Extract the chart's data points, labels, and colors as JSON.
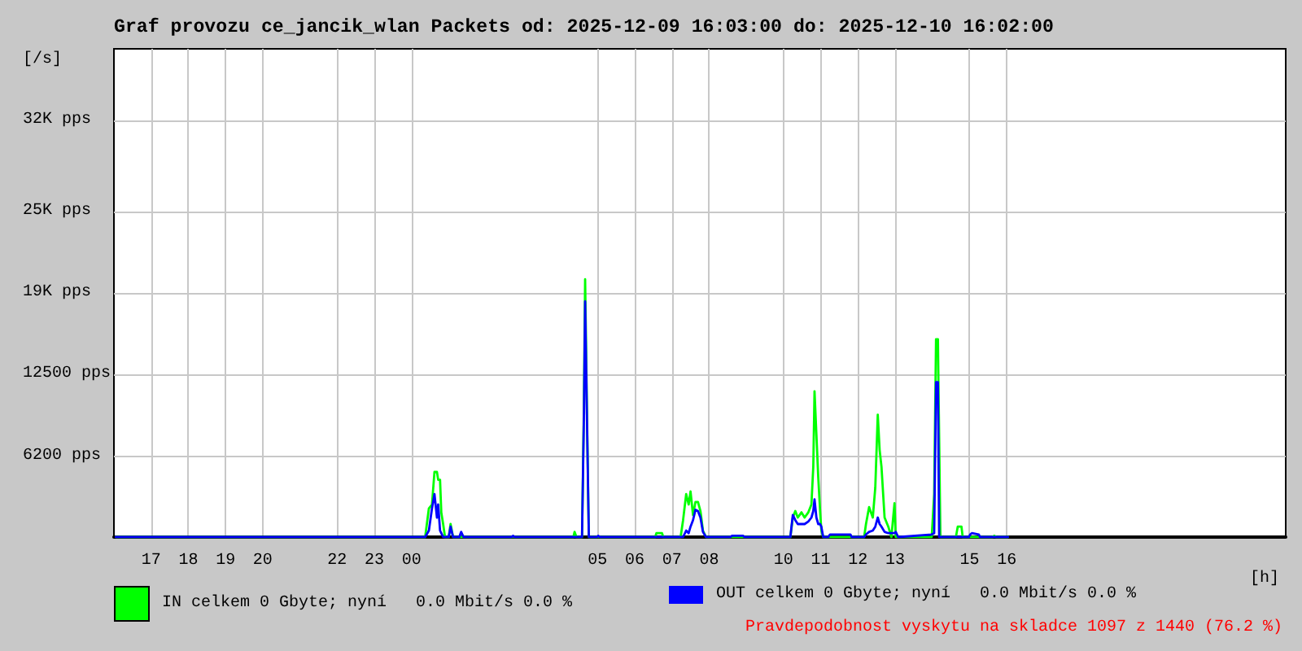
{
  "chart_data": {
    "type": "line",
    "title": "Graf provozu ce_jancik_wlan Packets od: 2025-12-09 16:03:00 do: 2025-12-10 16:02:00",
    "ylabel": "[/s]",
    "xlabel": "[h]",
    "annotations": [
      "Pravdepodobnost vyskytu na skladce 1097 z 1440 (76.2 %)"
    ],
    "x": [
      "2025-12-09T16:03",
      "2025-12-10T00:22",
      "2025-12-10T00:28",
      "2025-12-10T00:33",
      "2025-12-10T00:37",
      "2025-12-10T00:41",
      "2025-12-10T00:43",
      "2025-12-10T00:46",
      "2025-12-10T00:48",
      "2025-12-10T00:51",
      "2025-12-10T00:54",
      "2025-12-10T01:00",
      "2025-12-10T01:03",
      "2025-12-10T01:07",
      "2025-12-10T01:17",
      "2025-12-10T01:20",
      "2025-12-10T01:24",
      "2025-12-10T02:41",
      "2025-12-10T02:44",
      "2025-12-10T02:46",
      "2025-12-10T04:21",
      "2025-12-10T04:23",
      "2025-12-10T04:26",
      "2025-12-10T04:35",
      "2025-12-10T04:38",
      "2025-12-10T04:40",
      "2025-12-10T04:43",
      "2025-12-10T04:46",
      "2025-12-10T04:59",
      "2025-12-10T05:01",
      "2025-12-10T05:04",
      "2025-12-10T06:33",
      "2025-12-10T06:35",
      "2025-12-10T06:44",
      "2025-12-10T06:46",
      "2025-12-10T07:14",
      "2025-12-10T07:18",
      "2025-12-10T07:23",
      "2025-12-10T07:27",
      "2025-12-10T07:30",
      "2025-12-10T07:34",
      "2025-12-10T07:38",
      "2025-12-10T07:42",
      "2025-12-10T07:46",
      "2025-12-10T07:50",
      "2025-12-10T07:55",
      "2025-12-10T08:34",
      "2025-12-10T08:37",
      "2025-12-10T08:55",
      "2025-12-10T08:57",
      "2025-12-10T10:11",
      "2025-12-10T10:15",
      "2025-12-10T10:19",
      "2025-12-10T10:23",
      "2025-12-10T10:29",
      "2025-12-10T10:34",
      "2025-12-10T10:40",
      "2025-12-10T10:45",
      "2025-12-10T10:48",
      "2025-12-10T10:50",
      "2025-12-10T10:53",
      "2025-12-10T10:56",
      "2025-12-10T10:59",
      "2025-12-10T11:01",
      "2025-12-10T11:04",
      "2025-12-10T11:12",
      "2025-12-10T11:15",
      "2025-12-10T11:48",
      "2025-12-10T11:50",
      "2025-12-10T12:10",
      "2025-12-10T12:13",
      "2025-12-10T12:18",
      "2025-12-10T12:24",
      "2025-12-10T12:28",
      "2025-12-10T12:32",
      "2025-12-10T12:35",
      "2025-12-10T12:38",
      "2025-12-10T12:43",
      "2025-12-10T12:49",
      "2025-12-10T12:54",
      "2025-12-10T12:59",
      "2025-12-10T13:01",
      "2025-12-10T13:05",
      "2025-12-10T13:59",
      "2025-12-10T14:03",
      "2025-12-10T14:06",
      "2025-12-10T14:09",
      "2025-12-10T14:11",
      "2025-12-10T14:13",
      "2025-12-10T14:38",
      "2025-12-10T14:41",
      "2025-12-10T14:47",
      "2025-12-10T14:49",
      "2025-12-10T14:59",
      "2025-12-10T15:01",
      "2025-12-10T15:04",
      "2025-12-10T15:15",
      "2025-12-10T15:17",
      "2025-12-10T15:37",
      "2025-12-10T15:40",
      "2025-12-10T15:43",
      "2025-12-10T16:02"
    ],
    "series": [
      {
        "name": "IN celkem 0 Gbyte; nyní   0.0 Mbit/s 0.0 %",
        "color": "#00ff00",
        "values": [
          0,
          0,
          2200,
          2500,
          5000,
          5000,
          4400,
          4400,
          1900,
          1000,
          0,
          0,
          1000,
          0,
          0,
          0,
          0,
          0,
          0,
          0,
          0,
          400,
          0,
          0,
          9900,
          19800,
          9500,
          0,
          0,
          0,
          0,
          0,
          300,
          300,
          0,
          0,
          1300,
          3300,
          2500,
          3500,
          1700,
          2700,
          2700,
          2000,
          500,
          0,
          0,
          0,
          0,
          0,
          0,
          1500,
          2000,
          1500,
          1900,
          1500,
          1900,
          2500,
          5400,
          11200,
          7900,
          4600,
          2000,
          500,
          0,
          0,
          0,
          0,
          0,
          0,
          1000,
          2300,
          1500,
          3800,
          9400,
          6700,
          5400,
          1500,
          800,
          0,
          2600,
          0,
          0,
          0,
          3300,
          15200,
          15200,
          7600,
          0,
          0,
          800,
          800,
          0,
          0,
          0,
          0,
          0,
          0,
          0,
          100,
          0,
          0
        ]
      },
      {
        "name": "OUT celkem 0 Gbyte; nyní   0.0 Mbit/s 0.0 %",
        "color": "#0000ff",
        "values": [
          0,
          0,
          500,
          2200,
          3300,
          1500,
          2500,
          500,
          300,
          0,
          0,
          0,
          800,
          0,
          0,
          400,
          0,
          0,
          100,
          0,
          0,
          0,
          0,
          0,
          9200,
          18100,
          9000,
          0,
          0,
          100,
          0,
          0,
          0,
          0,
          0,
          0,
          0,
          500,
          300,
          800,
          1300,
          2100,
          2000,
          1500,
          400,
          0,
          0,
          100,
          100,
          0,
          0,
          1700,
          1300,
          1000,
          1000,
          1000,
          1200,
          1500,
          2000,
          2900,
          1500,
          1000,
          1000,
          800,
          0,
          0,
          200,
          200,
          0,
          0,
          200,
          400,
          500,
          800,
          1500,
          1000,
          800,
          400,
          300,
          300,
          300,
          400,
          0,
          200,
          300,
          11900,
          11900,
          0,
          0,
          0,
          0,
          0,
          0,
          0,
          200,
          300,
          200,
          0,
          0,
          0,
          0,
          0
        ]
      }
    ],
    "xlim": [
      "2025-12-09T16:00",
      "2025-12-10T23:30"
    ],
    "xticks": [
      {
        "value": "2025-12-09T17:00",
        "label": "17"
      },
      {
        "value": "2025-12-09T18:00",
        "label": "18"
      },
      {
        "value": "2025-12-09T19:00",
        "label": "19"
      },
      {
        "value": "2025-12-09T20:00",
        "label": "20"
      },
      {
        "value": "2025-12-09T22:00",
        "label": "22"
      },
      {
        "value": "2025-12-09T23:00",
        "label": "23"
      },
      {
        "value": "2025-12-10T00:00",
        "label": "00"
      },
      {
        "value": "2025-12-10T05:00",
        "label": "05"
      },
      {
        "value": "2025-12-10T06:00",
        "label": "06"
      },
      {
        "value": "2025-12-10T07:00",
        "label": "07"
      },
      {
        "value": "2025-12-10T08:00",
        "label": "08"
      },
      {
        "value": "2025-12-10T10:00",
        "label": "10"
      },
      {
        "value": "2025-12-10T11:00",
        "label": "11"
      },
      {
        "value": "2025-12-10T12:00",
        "label": "12"
      },
      {
        "value": "2025-12-10T13:00",
        "label": "13"
      },
      {
        "value": "2025-12-10T15:00",
        "label": "15"
      },
      {
        "value": "2025-12-10T16:00",
        "label": "16"
      }
    ],
    "ylim": [
      0,
      37500
    ],
    "yticks": [
      {
        "value": 6200,
        "label": "6200 pps"
      },
      {
        "value": 12500,
        "label": "12500 pps"
      },
      {
        "value": 18750,
        "label": "19K pps"
      },
      {
        "value": 25000,
        "label": "25K pps"
      },
      {
        "value": 32000,
        "label": "32K pps"
      }
    ],
    "grid": true,
    "legend": "bottom",
    "marker": "none",
    "line_style": "solid"
  }
}
